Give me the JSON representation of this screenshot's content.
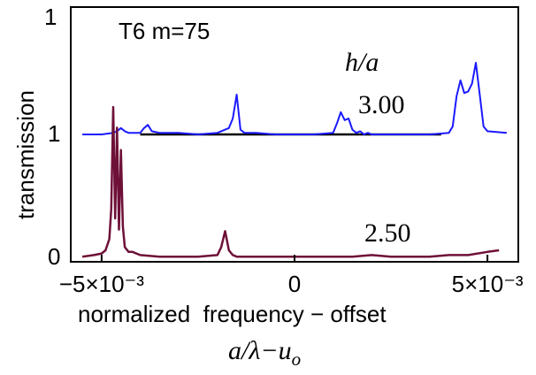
{
  "chart_data": {
    "type": "line",
    "annotation_title": "T6 m=75",
    "ylabel": "transmission",
    "xlabel": "normalized  frequency − offset",
    "xlabel_formula": "a/λ−u",
    "xlabel_formula_sub": "o",
    "param_label": "h/a",
    "xlim": [
      -0.0058,
      0.0058
    ],
    "x_ticks": [
      {
        "value": -0.005,
        "label": "−5×10⁻³"
      },
      {
        "value": 0,
        "label": "0"
      },
      {
        "value": 0.005,
        "label": "5×10⁻³"
      }
    ],
    "y_ticks": [
      {
        "label": "1"
      },
      {
        "label": "1"
      },
      {
        "label": "0"
      }
    ],
    "grid": false,
    "series": [
      {
        "name": "3.00",
        "color": "#1a1aff",
        "baseline": 1,
        "x": [
          -0.0055,
          -0.005,
          -0.0047,
          -0.0046,
          -0.0045,
          -0.0044,
          -0.0043,
          -0.0042,
          -0.004,
          -0.0039,
          -0.0038,
          -0.0037,
          -0.0035,
          -0.003,
          -0.0025,
          -0.002,
          -0.0019,
          -0.0018,
          -0.0017,
          -0.0016,
          -0.0015,
          -0.0014,
          -0.0013,
          -0.001,
          -0.0005,
          0.0,
          0.0005,
          0.001,
          0.0011,
          0.0012,
          0.0013,
          0.0014,
          0.0015,
          0.0016,
          0.0017,
          0.0018,
          0.0019,
          0.002,
          0.0025,
          0.003,
          0.0035,
          0.004,
          0.0041,
          0.0042,
          0.0043,
          0.0044,
          0.0045,
          0.0046,
          0.0047,
          0.0048,
          0.0049,
          0.005,
          0.0055
        ],
        "y": [
          1.0,
          1.0,
          1.01,
          1.02,
          1.04,
          1.02,
          1.01,
          1.01,
          1.01,
          1.04,
          1.06,
          1.02,
          1.01,
          1.01,
          1.0,
          1.01,
          1.02,
          1.03,
          1.04,
          1.1,
          1.25,
          1.03,
          1.01,
          1.01,
          1.0,
          1.0,
          1.0,
          1.01,
          1.07,
          1.14,
          1.09,
          1.1,
          1.03,
          1.01,
          1.02,
          1.0,
          1.01,
          1.0,
          1.0,
          1.0,
          1.0,
          1.01,
          1.05,
          1.24,
          1.34,
          1.26,
          1.27,
          1.32,
          1.45,
          1.25,
          1.05,
          1.02,
          1.01
        ]
      },
      {
        "name": "2.50",
        "color": "#6e1038",
        "baseline": 0,
        "x": [
          -0.0055,
          -0.0052,
          -0.005,
          -0.0049,
          -0.0048,
          -0.00475,
          -0.0047,
          -0.00465,
          -0.0046,
          -0.00455,
          -0.0045,
          -0.00445,
          -0.0044,
          -0.0043,
          -0.0042,
          -0.004,
          -0.0035,
          -0.003,
          -0.0025,
          -0.002,
          -0.0019,
          -0.0018,
          -0.0017,
          -0.0016,
          -0.0015,
          -0.001,
          -0.0005,
          0.0,
          0.0005,
          0.001,
          0.0015,
          0.002,
          0.0025,
          0.003,
          0.0035,
          0.004,
          0.0045,
          0.005,
          0.0053
        ],
        "y": [
          0.01,
          0.02,
          0.03,
          0.05,
          0.12,
          0.31,
          0.95,
          0.25,
          0.82,
          0.18,
          0.68,
          0.2,
          0.07,
          0.04,
          0.04,
          0.02,
          0.01,
          0.01,
          0.01,
          0.02,
          0.07,
          0.17,
          0.05,
          0.02,
          0.01,
          0.01,
          0.01,
          0.01,
          0.01,
          0.01,
          0.01,
          0.02,
          0.01,
          0.01,
          0.01,
          0.02,
          0.02,
          0.04,
          0.05
        ]
      }
    ],
    "reference_line": {
      "x": [
        -0.004,
        0.0038
      ],
      "y": 1
    }
  }
}
